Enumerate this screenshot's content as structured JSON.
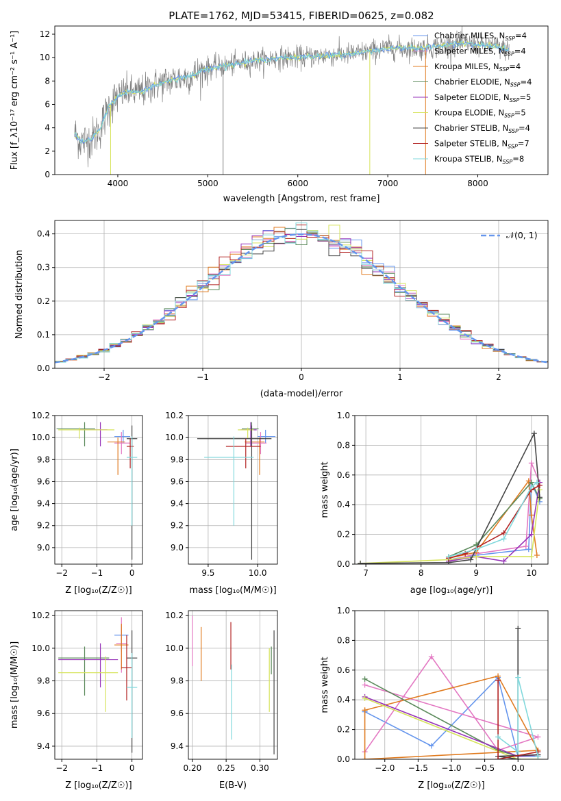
{
  "colors": {
    "Chabrier MILES": "#6495ed",
    "Salpeter MILES": "#e377c2",
    "Kroupa MILES": "#e07b20",
    "Chabrier ELODIE": "#5b8a5b",
    "Salpeter ELODIE": "#9632b8",
    "Kroupa ELODIE": "#d6e35a",
    "Chabrier STELIB": "#444444",
    "Salpeter STELIB": "#b22222",
    "Kroupa STELIB": "#80d8dc",
    "data": "#808080"
  },
  "chart_data": [
    {
      "id": "spectrum",
      "type": "line",
      "title": "PLATE=1762, MJD=53415, FIBERID=0625, z=0.082",
      "xlabel": "wavelength [Angstrom, rest frame]",
      "ylabel": "Flux [f_λ10⁻¹⁷ erg cm⁻² s⁻¹ A⁻¹]",
      "xlim": [
        3300,
        8780
      ],
      "ylim": [
        0,
        12.7
      ],
      "xticks": [
        4000,
        5000,
        6000,
        7000,
        8000
      ],
      "yticks": [
        0,
        2,
        4,
        6,
        8,
        10,
        12
      ],
      "grid": false,
      "legend_position": "right",
      "legend": [
        {
          "name": "Chabrier MILES",
          "nssp": "4"
        },
        {
          "name": "Salpeter MILES",
          "nssp": "4"
        },
        {
          "name": "Kroupa MILES",
          "nssp": "4"
        },
        {
          "name": "Chabrier ELODIE",
          "nssp": "4"
        },
        {
          "name": "Salpeter ELODIE",
          "nssp": "5"
        },
        {
          "name": "Kroupa ELODIE",
          "nssp": "5"
        },
        {
          "name": "Chabrier STELIB",
          "nssp": "4"
        },
        {
          "name": "Salpeter STELIB",
          "nssp": "7"
        },
        {
          "name": "Kroupa STELIB",
          "nssp": "8"
        }
      ],
      "continuum": {
        "wavelength": [
          3520,
          3600,
          3700,
          3800,
          3900,
          4000,
          4100,
          4200,
          4300,
          4400,
          4600,
          4800,
          5000,
          5200,
          5500,
          5800,
          6000,
          6300,
          6600,
          7000,
          7400,
          7800,
          8200,
          8350
        ],
        "flux": [
          3.5,
          2.8,
          3.0,
          3.8,
          5.8,
          6.7,
          7.1,
          7.0,
          7.2,
          7.6,
          8.1,
          8.4,
          9.1,
          9.3,
          9.7,
          10.0,
          10.0,
          10.2,
          10.3,
          10.8,
          10.8,
          11.2,
          11.0,
          10.6
        ]
      },
      "dropouts": [
        {
          "x": 5170,
          "color": "#808080"
        },
        {
          "x": 3920,
          "color": "#d6e35a"
        },
        {
          "x": 6800,
          "color": "#d6e35a"
        },
        {
          "x": 7420,
          "color": "#e07b20"
        }
      ]
    },
    {
      "id": "residual-histogram",
      "type": "histogram",
      "xlabel": "(data-model)/error",
      "ylabel": "Normed distribution",
      "xlim": [
        -2.5,
        2.5
      ],
      "ylim": [
        0,
        0.44
      ],
      "xticks": [
        -2,
        -1,
        0,
        1,
        2
      ],
      "yticks": [
        0.0,
        0.1,
        0.2,
        0.3,
        0.4
      ],
      "grid": true,
      "legend_position": "top-right",
      "reference": {
        "name": "𝒩(0, 1)",
        "mean": 0,
        "sigma": 1
      }
    },
    {
      "id": "age-vs-metallicity",
      "type": "errorbar",
      "xlabel": "Z [log₁₀(Z/Z☉)]",
      "ylabel": "age  [log₁₀(age/yr)]",
      "xlim": [
        -2.2,
        0.3
      ],
      "ylim": [
        8.85,
        10.2
      ],
      "xticks": [
        -2,
        -1,
        0
      ],
      "yticks": [
        9.0,
        9.2,
        9.4,
        9.6,
        9.8,
        10.0,
        10.2
      ],
      "grid": true,
      "points": [
        {
          "model": "Chabrier MILES",
          "x": -0.25,
          "xerr": [
            0.25,
            0.2
          ],
          "y": 10.01,
          "yerr": [
            0.06,
            0.06
          ]
        },
        {
          "model": "Salpeter MILES",
          "x": -0.3,
          "xerr": [
            0.2,
            0.25
          ],
          "y": 9.95,
          "yerr": [
            0.1,
            0.1
          ]
        },
        {
          "model": "Kroupa MILES",
          "x": -0.4,
          "xerr": [
            0.3,
            0.2
          ],
          "y": 9.96,
          "yerr": [
            0.3,
            0.04
          ]
        },
        {
          "model": "Chabrier ELODIE",
          "x": -1.35,
          "xerr": [
            0.8,
            0.3
          ],
          "y": 10.08,
          "yerr": [
            0.16,
            0.06
          ]
        },
        {
          "model": "Salpeter ELODIE",
          "x": -0.9,
          "xerr": [
            0.6,
            0.2
          ],
          "y": 10.07,
          "yerr": [
            0.15,
            0.07
          ]
        },
        {
          "model": "Kroupa ELODIE",
          "x": -1.5,
          "xerr": [
            0.6,
            1.0
          ],
          "y": 10.07,
          "yerr": [
            0.08,
            0.02
          ]
        },
        {
          "model": "Chabrier STELIB",
          "x": 0.0,
          "xerr": [
            0.15,
            0.15
          ],
          "y": 9.99,
          "yerr": [
            1.1,
            0.12
          ]
        },
        {
          "model": "Salpeter STELIB",
          "x": -0.05,
          "xerr": [
            0.1,
            0.1
          ],
          "y": 9.92,
          "yerr": [
            0.2,
            0.07
          ]
        },
        {
          "model": "Kroupa STELIB",
          "x": 0.0,
          "xerr": [
            0.15,
            0.15
          ],
          "y": 9.82,
          "yerr": [
            0.62,
            0.19
          ]
        }
      ]
    },
    {
      "id": "age-vs-mass",
      "type": "errorbar",
      "xlabel": "mass [log₁₀(M/M☉)]",
      "ylabel": "",
      "xlim": [
        9.3,
        10.2
      ],
      "ylim": [
        8.85,
        10.2
      ],
      "xticks": [
        9.5,
        10.0
      ],
      "yticks": [
        9.0,
        9.2,
        9.4,
        9.6,
        9.8,
        10.0,
        10.2
      ],
      "grid": true,
      "points": [
        {
          "model": "Chabrier MILES",
          "x": 10.08,
          "xerr": [
            0.08,
            0.1
          ],
          "y": 10.01,
          "yerr": [
            0.06,
            0.06
          ]
        },
        {
          "model": "Salpeter MILES",
          "x": 10.03,
          "xerr": [
            0.15,
            0.06
          ],
          "y": 9.95,
          "yerr": [
            0.1,
            0.1
          ]
        },
        {
          "model": "Kroupa MILES",
          "x": 10.02,
          "xerr": [
            0.15,
            0.05
          ],
          "y": 9.96,
          "yerr": [
            0.3,
            0.04
          ]
        },
        {
          "model": "Chabrier ELODIE",
          "x": 9.94,
          "xerr": [
            0.1,
            0.07
          ],
          "y": 10.08,
          "yerr": [
            0.16,
            0.06
          ]
        },
        {
          "model": "Salpeter ELODIE",
          "x": 9.93,
          "xerr": [
            0.1,
            0.06
          ],
          "y": 10.07,
          "yerr": [
            0.15,
            0.07
          ]
        },
        {
          "model": "Kroupa ELODIE",
          "x": 9.9,
          "xerr": [
            0.1,
            0.06
          ],
          "y": 10.07,
          "yerr": [
            0.08,
            0.02
          ]
        },
        {
          "model": "Chabrier STELIB",
          "x": 9.94,
          "xerr": [
            0.55,
            0.2
          ],
          "y": 9.99,
          "yerr": [
            1.1,
            0.12
          ]
        },
        {
          "model": "Salpeter STELIB",
          "x": 9.88,
          "xerr": [
            0.2,
            0.15
          ],
          "y": 9.92,
          "yerr": [
            0.2,
            0.07
          ]
        },
        {
          "model": "Kroupa STELIB",
          "x": 9.76,
          "xerr": [
            0.3,
            0.2
          ],
          "y": 9.82,
          "yerr": [
            0.62,
            0.19
          ]
        }
      ]
    },
    {
      "id": "mass-weight-vs-age",
      "type": "line",
      "xlabel": "age  [log₁₀(age/yr)]",
      "ylabel": "mass weight",
      "xlim": [
        6.8,
        10.3
      ],
      "ylim": [
        0,
        1.0
      ],
      "xticks": [
        7,
        8,
        9,
        10
      ],
      "yticks": [
        0.0,
        0.2,
        0.4,
        0.6,
        0.8,
        1.0
      ],
      "grid": true,
      "series": [
        {
          "model": "Chabrier MILES",
          "x": [
            8.5,
            9.0,
            9.95,
            10.0,
            10.15
          ],
          "y": [
            0.03,
            0.06,
            0.1,
            0.55,
            0.42
          ]
        },
        {
          "model": "Salpeter MILES",
          "x": [
            8.5,
            9.0,
            9.9,
            10.0,
            10.15
          ],
          "y": [
            0.02,
            0.07,
            0.12,
            0.68,
            0.55
          ]
        },
        {
          "model": "Kroupa MILES",
          "x": [
            8.5,
            9.0,
            9.95,
            10.0,
            10.1
          ],
          "y": [
            0.04,
            0.08,
            0.56,
            0.33,
            0.06
          ]
        },
        {
          "model": "Chabrier ELODIE",
          "x": [
            8.5,
            9.0,
            10.0,
            10.15
          ],
          "y": [
            0.05,
            0.13,
            0.55,
            0.44
          ]
        },
        {
          "model": "Salpeter ELODIE",
          "x": [
            8.5,
            9.0,
            9.5,
            10.0,
            10.15
          ],
          "y": [
            0.02,
            0.05,
            0.02,
            0.2,
            0.55
          ]
        },
        {
          "model": "Kroupa ELODIE",
          "x": [
            6.9,
            8.5,
            9.0,
            10.0,
            10.15
          ],
          "y": [
            0.005,
            0.03,
            0.05,
            0.05,
            0.5
          ]
        },
        {
          "model": "Chabrier STELIB",
          "x": [
            6.9,
            8.5,
            8.9,
            10.05,
            10.15
          ],
          "y": [
            0.005,
            0.01,
            0.03,
            0.88,
            0.45
          ]
        },
        {
          "model": "Salpeter STELIB",
          "x": [
            8.5,
            8.8,
            9.5,
            10.0,
            10.15
          ],
          "y": [
            0.04,
            0.07,
            0.21,
            0.5,
            0.53
          ]
        },
        {
          "model": "Kroupa STELIB",
          "x": [
            8.5,
            9.0,
            9.5,
            10.0,
            10.1
          ],
          "y": [
            0.05,
            0.1,
            0.17,
            0.52,
            0.55
          ]
        }
      ]
    },
    {
      "id": "mass-vs-metallicity",
      "type": "errorbar",
      "xlabel": "Z [log₁₀(Z/Z☉)]",
      "ylabel": "mass [log₁₀(M/M☉)]",
      "xlim": [
        -2.2,
        0.3
      ],
      "ylim": [
        9.32,
        10.23
      ],
      "xticks": [
        -2,
        -1,
        0
      ],
      "yticks": [
        9.4,
        9.6,
        9.8,
        10.0,
        10.2
      ],
      "grid": true,
      "points": [
        {
          "model": "Chabrier MILES",
          "x": -0.3,
          "xerr": [
            0.2,
            0.2
          ],
          "y": 10.08,
          "yerr": [
            0.1,
            0.06
          ]
        },
        {
          "model": "Salpeter MILES",
          "x": -0.3,
          "xerr": [
            0.15,
            0.15
          ],
          "y": 10.03,
          "yerr": [
            0.18,
            0.16
          ]
        },
        {
          "model": "Kroupa MILES",
          "x": -0.3,
          "xerr": [
            0.2,
            0.2
          ],
          "y": 10.02,
          "yerr": [
            0.15,
            0.13
          ]
        },
        {
          "model": "Chabrier ELODIE",
          "x": -1.35,
          "xerr": [
            0.75,
            0.7
          ],
          "y": 9.94,
          "yerr": [
            0.23,
            0.07
          ]
        },
        {
          "model": "Salpeter ELODIE",
          "x": -0.9,
          "xerr": [
            1.2,
            0.5
          ],
          "y": 9.93,
          "yerr": [
            0.17,
            0.1
          ]
        },
        {
          "model": "Kroupa ELODIE",
          "x": -0.75,
          "xerr": [
            1.35,
            0.35
          ],
          "y": 9.85,
          "yerr": [
            0.24,
            0.1
          ]
        },
        {
          "model": "Chabrier STELIB",
          "x": 0.0,
          "xerr": [
            0.15,
            0.15
          ],
          "y": 9.94,
          "yerr": [
            0.58,
            0.17
          ]
        },
        {
          "model": "Salpeter STELIB",
          "x": -0.15,
          "xerr": [
            0.15,
            0.15
          ],
          "y": 9.88,
          "yerr": [
            0.2,
            0.2
          ]
        },
        {
          "model": "Kroupa STELIB",
          "x": 0.0,
          "xerr": [
            0.15,
            0.15
          ],
          "y": 9.76,
          "yerr": [
            0.31,
            0.21
          ]
        }
      ]
    },
    {
      "id": "mass-vs-extinction",
      "type": "errorbar",
      "xlabel": "E(B-V)",
      "ylabel": "",
      "xlim": [
        0.194,
        0.326
      ],
      "ylim": [
        9.32,
        10.23
      ],
      "xticks": [
        0.2,
        0.25,
        0.3
      ],
      "ytick_values": [
        9.4,
        9.6,
        9.8,
        10.0,
        10.2
      ],
      "grid": true,
      "points": [
        {
          "model": "Salpeter MILES",
          "x": 0.2,
          "y": 10.03,
          "yerr": [
            0.14,
            0.17
          ]
        },
        {
          "model": "Kroupa MILES",
          "x": 0.213,
          "y": 10.0,
          "yerr": [
            0.2,
            0.13
          ]
        },
        {
          "model": "Salpeter STELIB",
          "x": 0.257,
          "y": 9.99,
          "yerr": [
            0.12,
            0.17
          ]
        },
        {
          "model": "Kroupa STELIB",
          "x": 0.258,
          "y": 9.76,
          "yerr": [
            0.32,
            0.14
          ]
        },
        {
          "model": "Kroupa ELODIE",
          "x": 0.314,
          "y": 9.85,
          "yerr": [
            0.24,
            0.15
          ]
        },
        {
          "model": "Chabrier ELODIE",
          "x": 0.317,
          "y": 9.94,
          "yerr": [
            0.1,
            0.07
          ]
        },
        {
          "model": "Chabrier STELIB",
          "x": 0.321,
          "y": 9.94,
          "yerr": [
            0.59,
            0.17
          ]
        }
      ]
    },
    {
      "id": "mass-weight-vs-metallicity",
      "type": "line",
      "xlabel": "Z [log₁₀(Z/Z☉)]",
      "ylabel": "mass weight",
      "xlim": [
        -2.45,
        0.45
      ],
      "ylim": [
        0,
        1.0
      ],
      "xticks": [
        -2.0,
        -1.5,
        -1.0,
        -0.5,
        0.0
      ],
      "yticks": [
        0.0,
        0.2,
        0.4,
        0.6,
        0.8,
        1.0
      ],
      "grid": true,
      "series": [
        {
          "model": "Chabrier MILES",
          "x": [
            -2.3,
            -1.3,
            -0.3,
            0.0,
            0.3
          ],
          "y": [
            0.32,
            0.09,
            0.55,
            0.02,
            0.02
          ]
        },
        {
          "model": "Salpeter MILES",
          "x": [
            -2.3,
            -1.3,
            -0.3,
            0.3,
            -2.3
          ],
          "y": [
            0.05,
            0.69,
            0.06,
            0.15,
            0.5
          ]
        },
        {
          "model": "Kroupa MILES",
          "x": [
            -2.3,
            -0.3,
            0.3,
            -2.3,
            -2.3
          ],
          "y": [
            0.33,
            0.56,
            0.06,
            0.0,
            0.33
          ]
        },
        {
          "model": "Chabrier ELODIE",
          "x": [
            -2.3,
            -0.3,
            0.0,
            0.3
          ],
          "y": [
            0.54,
            0.06,
            0.02,
            0.03
          ]
        },
        {
          "model": "Salpeter ELODIE",
          "x": [
            -2.3,
            0.0,
            0.3
          ],
          "y": [
            0.42,
            0.02,
            0.03
          ]
        },
        {
          "model": "Kroupa ELODIE",
          "x": [
            -2.3,
            0.0,
            0.3
          ],
          "y": [
            0.41,
            0.0,
            0.0
          ]
        },
        {
          "model": "Chabrier STELIB",
          "x": [
            0.0,
            0.0,
            -0.3,
            0.3
          ],
          "y": [
            0.88,
            0.0,
            0.02,
            0.03
          ]
        },
        {
          "model": "Salpeter STELIB",
          "x": [
            -0.3,
            -0.3,
            0.3
          ],
          "y": [
            0.53,
            0.0,
            0.05
          ]
        },
        {
          "model": "Kroupa STELIB",
          "x": [
            -0.3,
            0.0,
            0.0,
            0.3
          ],
          "y": [
            0.15,
            0.05,
            0.55,
            0.02
          ]
        }
      ]
    }
  ]
}
